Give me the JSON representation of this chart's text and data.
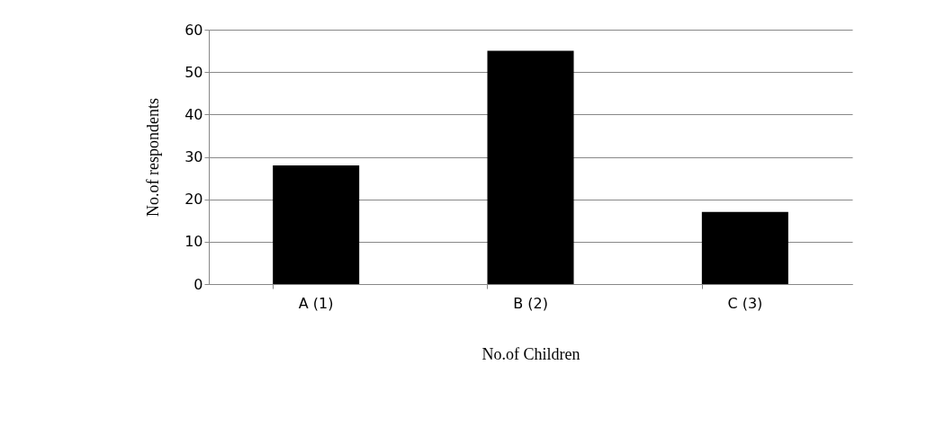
{
  "chart_data": {
    "type": "bar",
    "xlabel": "No.of Children",
    "ylabel": "No.of respondents",
    "categories": [
      "A (1)",
      "B (2)",
      "C (3)"
    ],
    "series": [
      {
        "color": "#000000",
        "values": [
          28,
          55,
          17
        ]
      }
    ],
    "ylim": [
      0,
      60
    ],
    "yticks": [
      0,
      10,
      20,
      30,
      40,
      50,
      60
    ],
    "grid": "y",
    "legend": false
  }
}
